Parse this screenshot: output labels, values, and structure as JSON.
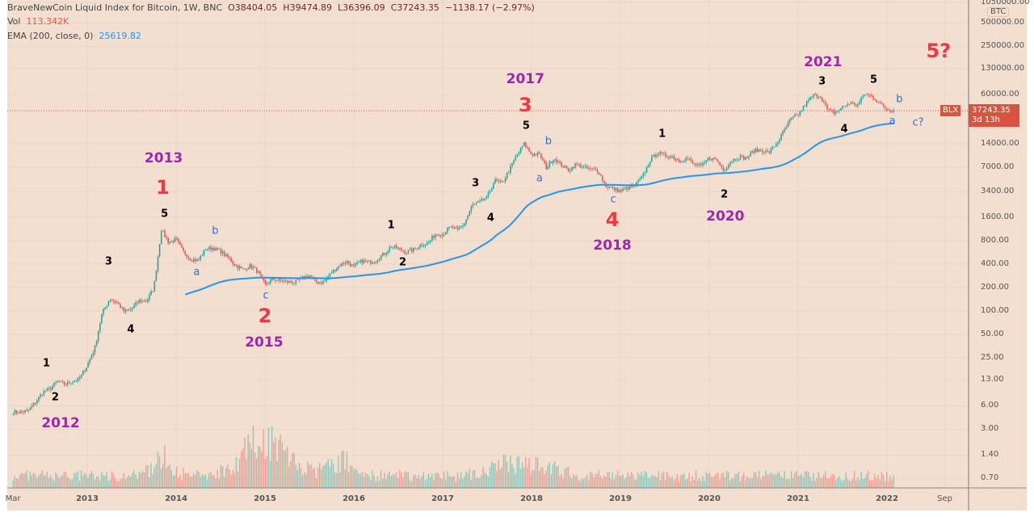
{
  "header": {
    "title": "BraveNewCoin Liquid Index for Bitcoin, 1W, BNC",
    "open": "O38404.05",
    "high": "H39474.89",
    "low": "L36396.09",
    "close": "C37243.35",
    "change": "−1138.17 (−2.97%)",
    "vol_label": "Vol",
    "vol_value": "113.342K",
    "ema_label": "EMA (200, close, 0)",
    "ema_value": "25619.82"
  },
  "price_axis": {
    "currency": "BTC",
    "ticks": [
      "1050000.00",
      "500000.00",
      "250000.00",
      "130000.00",
      "60000.00",
      "14000.00",
      "7000.00",
      "3400.00",
      "1600.00",
      "800.00",
      "400.00",
      "200.00",
      "100.00",
      "50.00",
      "25.00",
      "13.00",
      "6.00",
      "3.00",
      "1.40",
      "0.70"
    ],
    "last_price": "37243.35",
    "countdown": "3d 13h",
    "symbol_tag": "BLX"
  },
  "time_axis": {
    "ticks": [
      "Mar",
      "2013",
      "2014",
      "2015",
      "2016",
      "2017",
      "2018",
      "2019",
      "2020",
      "2021",
      "2022",
      "Sep"
    ]
  },
  "colors": {
    "up": "#26a69a",
    "down": "#ef5350",
    "ema": "#2196f3",
    "wave_red": "#f23645",
    "wave_purple": "#9c27b0",
    "wave_blue": "#2962ff",
    "black": "#000000",
    "background": "#f2dfcf"
  },
  "chart_data": {
    "type": "candlestick",
    "interval": "1W",
    "yscale": "log",
    "ylim": [
      0.5,
      1050000
    ],
    "xlim": [
      "2012-03",
      "2022-10"
    ],
    "grid": true,
    "monthly_close_approx": {
      "start": "2012-03",
      "values": [
        5,
        5,
        5.2,
        6.7,
        9,
        10,
        12.4,
        11.2,
        12.5,
        13.5,
        20,
        33,
        93,
        140,
        129,
        97,
        106,
        135,
        133,
        198,
        1100,
        750,
        830,
        570,
        460,
        447,
        630,
        640,
        585,
        480,
        387,
        338,
        378,
        320,
        217,
        254,
        244,
        236,
        230,
        263,
        284,
        230,
        236,
        314,
        378,
        430,
        368,
        437,
        416,
        448,
        531,
        673,
        624,
        573,
        609,
        700,
        742,
        963,
        970,
        1190,
        1080,
        1350,
        2300,
        2480,
        2875,
        4700,
        4340,
        6450,
        10000,
        14000,
        10200,
        10300,
        6900,
        9200,
        7500,
        6400,
        7700,
        7000,
        6600,
        6300,
        4000,
        3700,
        3450,
        3800,
        4100,
        5300,
        8600,
        10800,
        10000,
        9600,
        8300,
        9200,
        7550,
        7200,
        9350,
        8600,
        6400,
        8600,
        9450,
        9140,
        11350,
        11650,
        10780,
        13800,
        19700,
        29000,
        33100,
        45200,
        58800,
        57700,
        37300,
        35000,
        41500,
        47100,
        43800,
        61300,
        57000,
        46300,
        38500,
        37243.35
      ]
    },
    "ema": {
      "period": 200,
      "last": 25619.82
    },
    "annotations": [
      {
        "text": "1",
        "color": "black",
        "at": [
          2012.54,
          21
        ]
      },
      {
        "text": "2",
        "color": "black",
        "at": [
          2012.64,
          7.7
        ]
      },
      {
        "text": "2012",
        "color": "purple",
        "at": [
          2012.7,
          3.6
        ]
      },
      {
        "text": "3",
        "color": "black",
        "at": [
          2013.24,
          428
        ]
      },
      {
        "text": "4",
        "color": "black",
        "at": [
          2013.49,
          57
        ]
      },
      {
        "text": "5",
        "color": "black",
        "at": [
          2013.87,
          1750
        ]
      },
      {
        "text": "a",
        "color": "blue",
        "at": [
          2014.23,
          313
        ]
      },
      {
        "text": "b",
        "color": "blue",
        "at": [
          2014.44,
          1063
        ]
      },
      {
        "text": "c",
        "color": "blue",
        "at": [
          2015.01,
          157
        ]
      },
      {
        "text": "2013",
        "color": "purple",
        "at": [
          2013.86,
          9100
        ]
      },
      {
        "text": "1",
        "color": "red",
        "at": [
          2013.85,
          3850
        ]
      },
      {
        "text": "2",
        "color": "red",
        "at": [
          2015.0,
          86
        ]
      },
      {
        "text": "2015",
        "color": "purple",
        "at": [
          2014.99,
          39
        ]
      },
      {
        "text": "1",
        "color": "black",
        "at": [
          2016.42,
          1254
        ]
      },
      {
        "text": "2",
        "color": "black",
        "at": [
          2016.55,
          416
        ]
      },
      {
        "text": "3",
        "color": "black",
        "at": [
          2017.37,
          4340
        ]
      },
      {
        "text": "4",
        "color": "black",
        "at": [
          2017.54,
          1555
        ]
      },
      {
        "text": "5",
        "color": "black",
        "at": [
          2017.94,
          23700
        ]
      },
      {
        "text": "a",
        "color": "blue",
        "at": [
          2018.09,
          5010
        ]
      },
      {
        "text": "b",
        "color": "blue",
        "at": [
          2018.19,
          15000
        ]
      },
      {
        "text": "c",
        "color": "blue",
        "at": [
          2018.92,
          2690
        ]
      },
      {
        "text": "2017",
        "color": "purple",
        "at": [
          2017.93,
          94600
        ]
      },
      {
        "text": "3",
        "color": "red",
        "at": [
          2017.93,
          44100
        ]
      },
      {
        "text": "4",
        "color": "red",
        "at": [
          2018.91,
          1480
        ]
      },
      {
        "text": "2018",
        "color": "purple",
        "at": [
          2018.91,
          690
        ]
      },
      {
        "text": "1",
        "color": "black",
        "at": [
          2019.47,
          18600
        ]
      },
      {
        "text": "2",
        "color": "black",
        "at": [
          2020.17,
          3110
        ]
      },
      {
        "text": "2020",
        "color": "purple",
        "at": [
          2020.18,
          1630
        ]
      },
      {
        "text": "2021",
        "color": "purple",
        "at": [
          2021.28,
          156000
        ]
      },
      {
        "text": "3",
        "color": "black",
        "at": [
          2021.27,
          88400
        ]
      },
      {
        "text": "4",
        "color": "black",
        "at": [
          2021.52,
          21500
        ]
      },
      {
        "text": "5",
        "color": "black",
        "at": [
          2021.85,
          92400
        ]
      },
      {
        "text": "a",
        "color": "blue",
        "at": [
          2022.06,
          27400
        ]
      },
      {
        "text": "b",
        "color": "blue",
        "at": [
          2022.14,
          52200
        ]
      },
      {
        "text": "c?",
        "color": "blue",
        "at": [
          2022.35,
          26000
        ]
      },
      {
        "text": "5?",
        "color": "red",
        "at": [
          2022.58,
          219000
        ]
      }
    ]
  }
}
